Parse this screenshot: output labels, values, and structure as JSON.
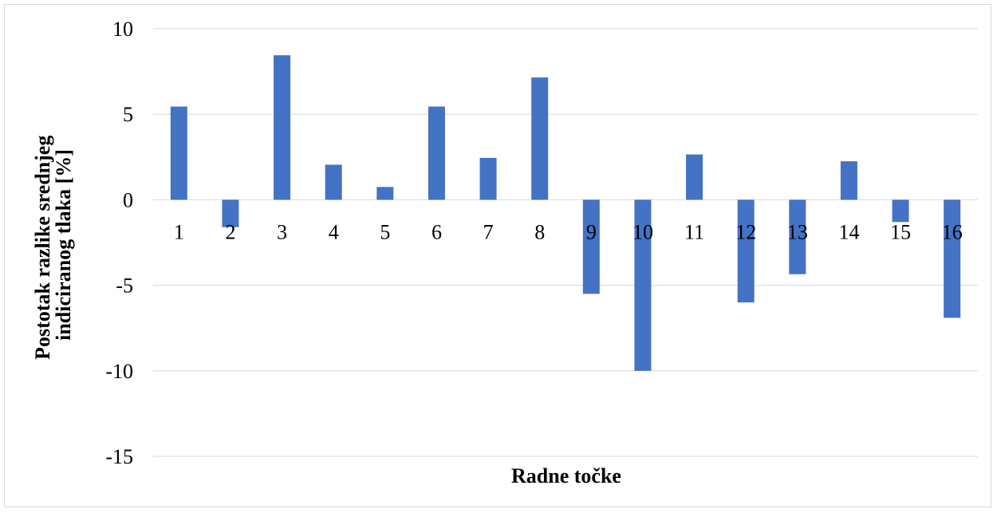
{
  "chart_data": {
    "type": "bar",
    "title": "",
    "xlabel": "Radne točke",
    "ylabel_lines": [
      "Postotak razlike srednjeg",
      "indiciranog tlaka [%]"
    ],
    "categories": [
      "1",
      "2",
      "3",
      "4",
      "5",
      "6",
      "7",
      "8",
      "9",
      "10",
      "11",
      "12",
      "13",
      "14",
      "15",
      "16"
    ],
    "values": [
      5.45,
      -1.6,
      8.45,
      2.05,
      0.75,
      5.45,
      2.45,
      7.15,
      -5.5,
      -10.0,
      2.65,
      -6.0,
      -4.35,
      2.25,
      -1.3,
      -6.9
    ],
    "ylim": [
      -15,
      10
    ],
    "yticks": [
      10,
      5,
      0,
      -5,
      -10,
      -15
    ],
    "grid": true,
    "legend": "none",
    "bar_color": "#4472c4",
    "grid_color": "#d9d9d9"
  }
}
